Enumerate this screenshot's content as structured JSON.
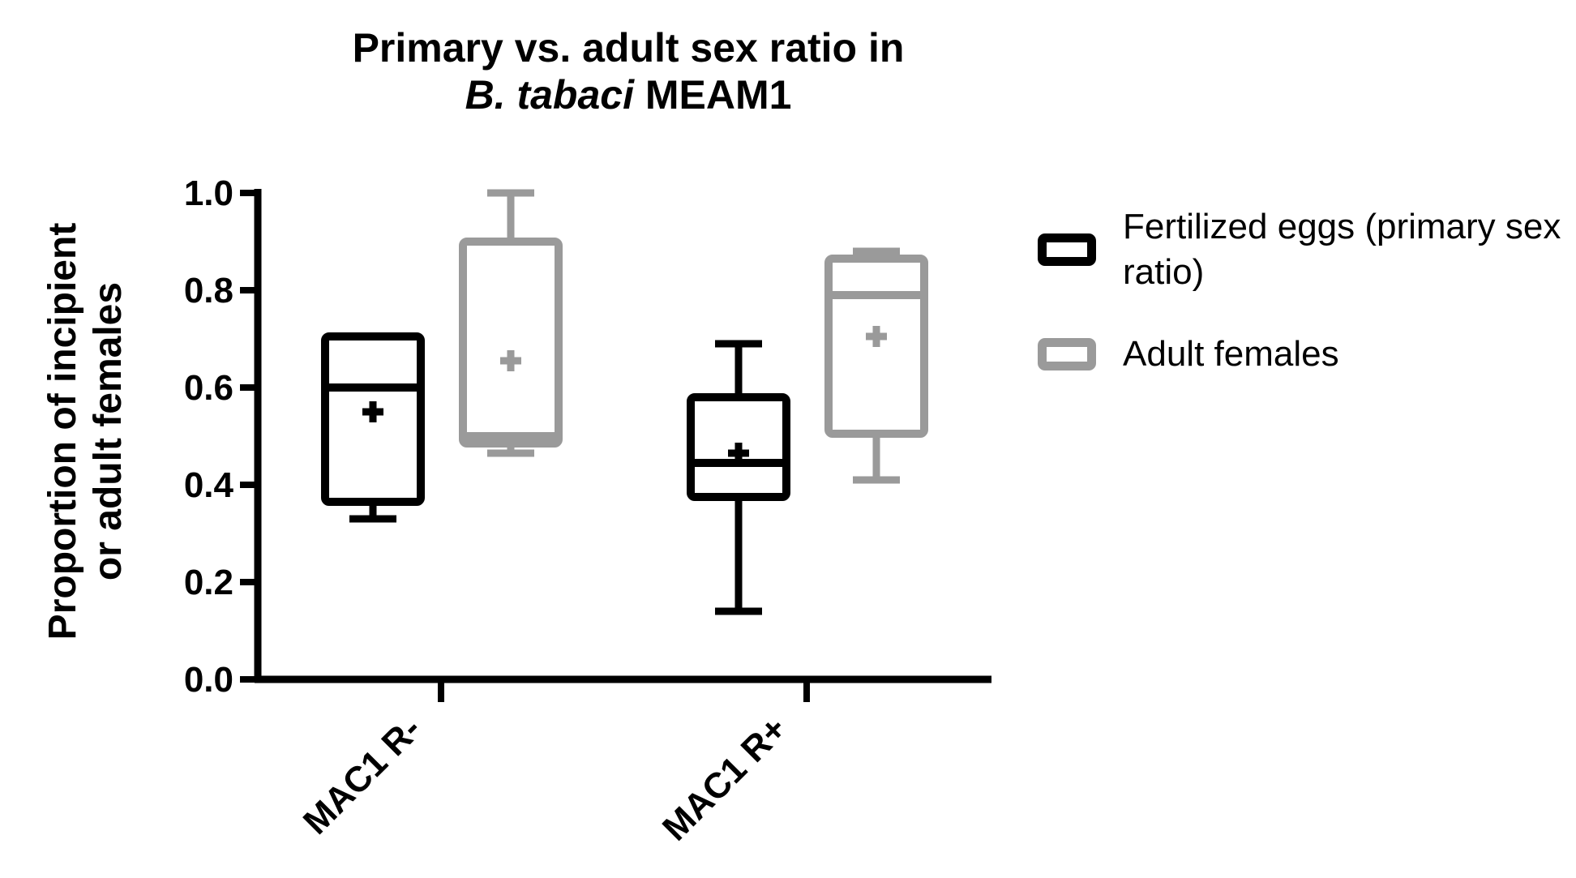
{
  "title": {
    "line1": "Primary vs. adult sex ratio in",
    "line2_italic": "B. tabaci",
    "line2_rest": " MEAM1"
  },
  "ylabel": {
    "line1": "Proportion of incipient",
    "line2": "or adult females"
  },
  "legend": {
    "items": [
      {
        "label": "Fertilized eggs (primary sex ratio)",
        "color": "#000000"
      },
      {
        "label": "Adult females",
        "color": "#9a9a9a"
      }
    ]
  },
  "colors": {
    "black_series": "#000000",
    "gray_series": "#9a9a9a",
    "axis": "#000000",
    "background": "#ffffff"
  },
  "chart_data": {
    "type": "box",
    "title": "Primary vs. adult sex ratio in B. tabaci MEAM1",
    "xlabel": "",
    "ylabel": "Proportion of incipient or adult females",
    "categories": [
      "MAC1 R-",
      "MAC1 R+"
    ],
    "ylim": [
      0.0,
      1.0
    ],
    "grid": false,
    "legend_position": "right",
    "y_ticks": [
      {
        "value": 0.0,
        "label": "0.0"
      },
      {
        "value": 0.2,
        "label": "0.2"
      },
      {
        "value": 0.4,
        "label": "0.4"
      },
      {
        "value": 0.6,
        "label": "0.6"
      },
      {
        "value": 0.8,
        "label": "0.8"
      },
      {
        "value": 1.0,
        "label": "1.0"
      }
    ],
    "series": [
      {
        "name": "Fertilized eggs (primary sex ratio)",
        "color": "#000000",
        "boxes": [
          {
            "category": "MAC1 R-",
            "min": 0.33,
            "q1": 0.365,
            "median": 0.6,
            "q3": 0.705,
            "max": 0.705,
            "mean": 0.55
          },
          {
            "category": "MAC1 R+",
            "min": 0.14,
            "q1": 0.375,
            "median": 0.445,
            "q3": 0.58,
            "max": 0.69,
            "mean": 0.465
          }
        ]
      },
      {
        "name": "Adult females",
        "color": "#9a9a9a",
        "boxes": [
          {
            "category": "MAC1 R-",
            "min": 0.465,
            "q1": 0.485,
            "median": 0.5,
            "q3": 0.9,
            "max": 1.0,
            "mean": 0.655
          },
          {
            "category": "MAC1 R+",
            "min": 0.41,
            "q1": 0.505,
            "median": 0.79,
            "q3": 0.865,
            "max": 0.88,
            "mean": 0.705
          }
        ]
      }
    ]
  }
}
